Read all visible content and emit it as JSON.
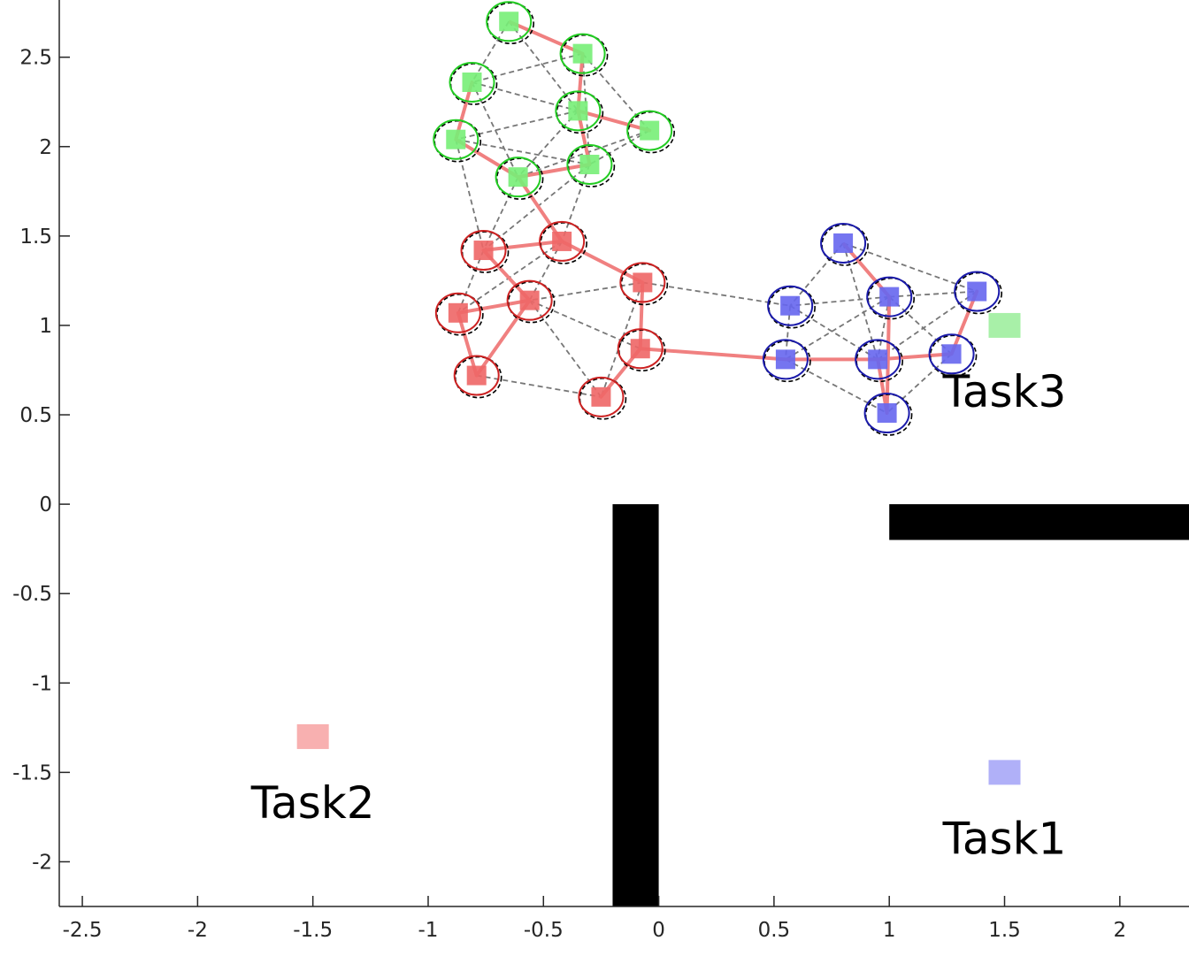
{
  "chart_data": {
    "type": "scatter",
    "title": "",
    "xlabel": "",
    "ylabel": "",
    "xlim": [
      -2.6,
      2.3
    ],
    "ylim": [
      -2.25,
      2.82
    ],
    "xticks": [
      -2.5,
      -2,
      -1.5,
      -1,
      -0.5,
      0,
      0.5,
      1,
      1.5,
      2
    ],
    "yticks": [
      -2,
      -1.5,
      -1,
      -0.5,
      0,
      0.5,
      1,
      1.5,
      2,
      2.5
    ],
    "xtick_labels": [
      "-2.5",
      "-2",
      "-1.5",
      "-1",
      "-0.5",
      "0",
      "0.5",
      "1",
      "1.5",
      "2"
    ],
    "ytick_labels": [
      "-2",
      "-1.5",
      "-1",
      "-0.5",
      "0",
      "0.5",
      "1",
      "1.5",
      "2",
      "2.5"
    ],
    "grid": false,
    "colors": {
      "green_edge": "#22cc22",
      "green_fill": "#77ee77",
      "red_edge": "#cc2222",
      "red_fill": "#ee6666",
      "blue_edge": "#1a1aaa",
      "blue_fill": "#6666ee",
      "path": "#f08080",
      "dashed": "#777777",
      "obstacle": "#000000"
    },
    "groups": [
      {
        "color": "green",
        "points": [
          [
            -0.65,
            2.7
          ],
          [
            -0.33,
            2.52
          ],
          [
            -0.81,
            2.36
          ],
          [
            -0.35,
            2.2
          ],
          [
            -0.04,
            2.09
          ],
          [
            -0.88,
            2.04
          ],
          [
            -0.61,
            1.83
          ],
          [
            -0.3,
            1.9
          ]
        ]
      },
      {
        "color": "red",
        "points": [
          [
            -0.42,
            1.47
          ],
          [
            -0.76,
            1.42
          ],
          [
            -0.07,
            1.24
          ],
          [
            -0.56,
            1.14
          ],
          [
            -0.87,
            1.07
          ],
          [
            -0.08,
            0.87
          ],
          [
            -0.79,
            0.72
          ],
          [
            -0.25,
            0.6
          ]
        ]
      },
      {
        "color": "blue",
        "points": [
          [
            0.8,
            1.46
          ],
          [
            1.0,
            1.16
          ],
          [
            1.38,
            1.19
          ],
          [
            0.57,
            1.11
          ],
          [
            0.55,
            0.81
          ],
          [
            0.95,
            0.81
          ],
          [
            1.27,
            0.84
          ],
          [
            0.99,
            0.51
          ]
        ]
      }
    ],
    "path": [
      [
        -0.65,
        2.7
      ],
      [
        -0.33,
        2.52
      ],
      [
        -0.35,
        2.2
      ],
      [
        -0.04,
        2.09
      ],
      [
        -0.35,
        2.2
      ],
      [
        -0.3,
        1.9
      ],
      [
        -0.61,
        1.83
      ],
      [
        -0.88,
        2.04
      ],
      [
        -0.81,
        2.36
      ],
      [
        -0.88,
        2.04
      ],
      [
        -0.61,
        1.83
      ],
      [
        -0.42,
        1.47
      ],
      [
        -0.76,
        1.42
      ],
      [
        -0.56,
        1.14
      ],
      [
        -0.87,
        1.07
      ],
      [
        -0.79,
        0.72
      ],
      [
        -0.56,
        1.14
      ],
      [
        -0.76,
        1.42
      ],
      [
        -0.42,
        1.47
      ],
      [
        -0.07,
        1.24
      ],
      [
        -0.08,
        0.87
      ],
      [
        -0.25,
        0.6
      ],
      [
        -0.08,
        0.87
      ],
      [
        0.55,
        0.81
      ],
      [
        0.95,
        0.81
      ],
      [
        1.27,
        0.84
      ],
      [
        1.38,
        1.19
      ],
      [
        1.27,
        0.84
      ],
      [
        0.95,
        0.81
      ],
      [
        0.99,
        0.51
      ],
      [
        1.0,
        1.16
      ],
      [
        0.8,
        1.46
      ]
    ],
    "obstacles": [
      {
        "x0": -0.2,
        "x1": 0.0,
        "y0": -2.25,
        "y1": 0.0
      },
      {
        "x0": 1.0,
        "x1": 2.3,
        "y0": -0.2,
        "y1": 0.0
      }
    ],
    "tasks": [
      {
        "label": "Task1",
        "x": 1.5,
        "y": -1.5,
        "color": "#b0b0f8"
      },
      {
        "label": "Task2",
        "x": -1.5,
        "y": -1.3,
        "color": "#f8b0b0"
      },
      {
        "label": "Task3",
        "x": 1.5,
        "y": 1.0,
        "color": "#a8f0a8"
      }
    ]
  }
}
